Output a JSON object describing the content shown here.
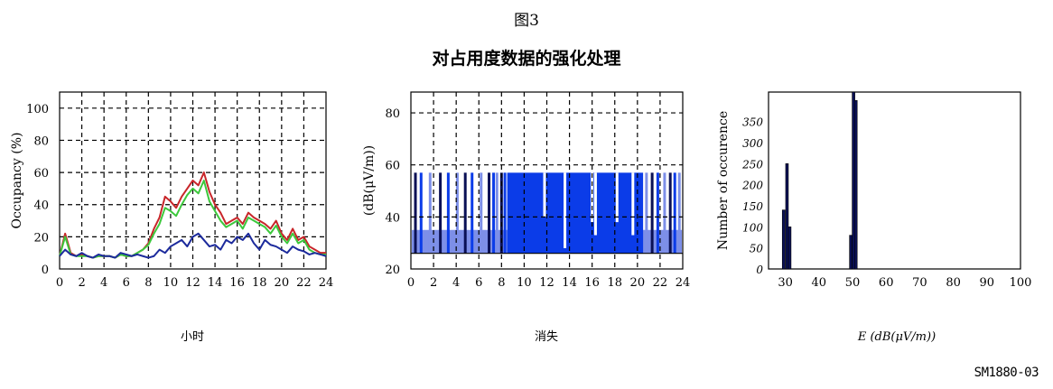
{
  "figure_label": "图3",
  "figure_title": "对占用度数据的强化处理",
  "reference": "SM1880-03",
  "colors": {
    "red": "#c8262a",
    "green": "#3cc83c",
    "blue": "#1c2a9c",
    "fill_blue": "#0b3ce8",
    "light_blue": "#7d8fe8",
    "navy": "#0a1055"
  },
  "chart_data": [
    {
      "type": "line",
      "ylabel": "Occupancy (%)",
      "xlabel": "小时",
      "xlim": [
        0,
        24
      ],
      "ylim": [
        0,
        110
      ],
      "grid": true,
      "x_ticks": [
        "0",
        "2",
        "4",
        "6",
        "8",
        "10",
        "12",
        "14",
        "16",
        "18",
        "20",
        "22",
        "24"
      ],
      "y_ticks": [
        "0",
        "20",
        "40",
        "60",
        "80",
        "100"
      ],
      "x": [
        0,
        0.5,
        1,
        1.5,
        2,
        2.5,
        3,
        3.5,
        4,
        4.5,
        5,
        5.5,
        6,
        6.5,
        7,
        7.5,
        8,
        8.5,
        9,
        9.5,
        10,
        10.5,
        11,
        11.5,
        12,
        12.5,
        13,
        13.5,
        14,
        14.5,
        15,
        15.5,
        16,
        16.5,
        17,
        17.5,
        18,
        18.5,
        19,
        19.5,
        20,
        20.5,
        21,
        21.5,
        22,
        22.5,
        23,
        23.5,
        24
      ],
      "series": [
        {
          "color": "red",
          "values": [
            8,
            22,
            10,
            8,
            9,
            8,
            7,
            8,
            8,
            8,
            7,
            9,
            8,
            8,
            10,
            12,
            16,
            25,
            32,
            45,
            42,
            38,
            45,
            50,
            55,
            52,
            60,
            48,
            40,
            35,
            28,
            30,
            32,
            28,
            35,
            32,
            30,
            28,
            25,
            30,
            22,
            18,
            25,
            18,
            20,
            14,
            12,
            10,
            10
          ]
        },
        {
          "color": "green",
          "values": [
            8,
            20,
            9,
            8,
            8,
            8,
            7,
            8,
            8,
            8,
            7,
            9,
            8,
            8,
            10,
            12,
            15,
            22,
            28,
            38,
            36,
            33,
            40,
            46,
            50,
            47,
            55,
            42,
            36,
            30,
            26,
            28,
            30,
            25,
            32,
            30,
            28,
            26,
            22,
            27,
            20,
            16,
            22,
            16,
            18,
            12,
            10,
            9,
            9
          ]
        },
        {
          "color": "blue",
          "values": [
            8,
            12,
            9,
            8,
            10,
            8,
            7,
            9,
            8,
            8,
            7,
            10,
            9,
            8,
            9,
            8,
            7,
            8,
            12,
            10,
            14,
            16,
            18,
            14,
            20,
            22,
            18,
            14,
            15,
            12,
            18,
            16,
            20,
            18,
            22,
            16,
            12,
            18,
            15,
            14,
            12,
            10,
            14,
            12,
            11,
            9,
            10,
            9,
            8
          ]
        }
      ]
    },
    {
      "type": "bar",
      "ylabel": "(dB(μV/m))",
      "xlabel": "消失",
      "xlim": [
        0,
        24
      ],
      "ylim": [
        20,
        88
      ],
      "grid": true,
      "x_ticks": [
        "0",
        "2",
        "4",
        "6",
        "8",
        "10",
        "12",
        "14",
        "16",
        "18",
        "20",
        "22",
        "24"
      ],
      "y_ticks": [
        "20",
        "40",
        "60",
        "80"
      ],
      "baseline": 26,
      "base_level": 35,
      "dense_region": {
        "from": 8.5,
        "to": 20.5,
        "level": 57
      },
      "spike_level": 57,
      "spikes": [
        0.4,
        0.9,
        1.7,
        2.6,
        3.3,
        4.1,
        4.8,
        5.4,
        6.2,
        6.9,
        7.3,
        7.6,
        8.0,
        8.3,
        20.8,
        21.3,
        21.8,
        22.4,
        22.9,
        23.3,
        23.7
      ],
      "dips": [
        {
          "x": 11.8,
          "to": 40
        },
        {
          "x": 13.6,
          "to": 28
        },
        {
          "x": 16.0,
          "to": 38
        },
        {
          "x": 16.3,
          "to": 33
        },
        {
          "x": 18.2,
          "to": 38
        },
        {
          "x": 19.6,
          "to": 33
        }
      ]
    },
    {
      "type": "bar",
      "ylabel": "Number of occurence",
      "xlabel": "E (dB(μV/m))",
      "xlim": [
        25,
        100
      ],
      "ylim": [
        0,
        420
      ],
      "grid": false,
      "x_ticks": [
        "30",
        "40",
        "50",
        "60",
        "70",
        "80",
        "90",
        "100"
      ],
      "y_ticks": [
        "0",
        "50",
        "100",
        "150",
        "200",
        "250",
        "300",
        "350"
      ],
      "bins": [
        {
          "x": 29.5,
          "value": 140
        },
        {
          "x": 30.5,
          "value": 250
        },
        {
          "x": 31.3,
          "value": 100
        },
        {
          "x": 49.5,
          "value": 80
        },
        {
          "x": 50.3,
          "value": 420
        },
        {
          "x": 51.0,
          "value": 400
        }
      ]
    }
  ]
}
